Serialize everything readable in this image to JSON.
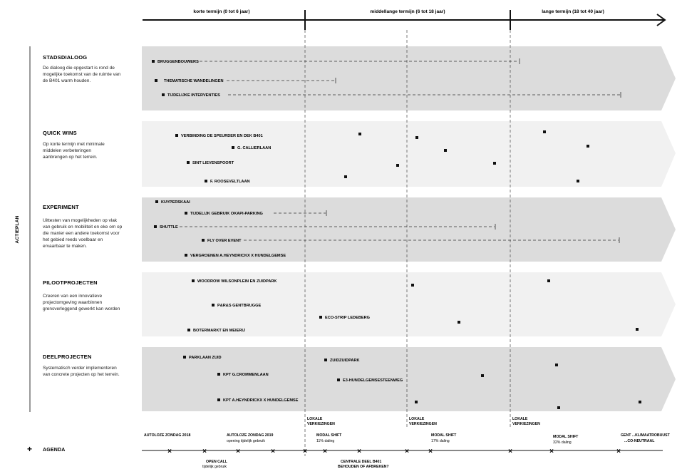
{
  "phases": [
    {
      "label": "korte termijn (0 tot 6 jaar)"
    },
    {
      "label": "middellange termijn (6 tot 18 jaar)"
    },
    {
      "label": "lange termijn (18 tot 40 jaar)"
    }
  ],
  "side_label": "ACTIEPLAN",
  "lanes": [
    {
      "title": "STADSDIALOOG",
      "desc": [
        "De dialoog die opgestart is rond de",
        "mogelijke toekomst van de ruimte van",
        "de B401 warm houden."
      ],
      "items": [
        {
          "label": "BRUGGENBOUWERS"
        },
        {
          "label": "THEMATISCHE WANDELINGEN"
        },
        {
          "label": "TIJDELIJKE INTERVENTIES"
        }
      ]
    },
    {
      "title": "QUICK WINS",
      "desc": [
        "Op korte termijn met minimale",
        "middelen verbeteringen",
        "aanbrengen op het terrein."
      ],
      "items": [
        {
          "label": "VERBINDING DE SPEURDER EN DEK B401"
        },
        {
          "label": "G. CALLIERLAAN"
        },
        {
          "label": "SINT LIEVENSPOORT"
        },
        {
          "label": "F. ROOSEVELTLAAN"
        }
      ]
    },
    {
      "title": "EXPERIMENT",
      "desc": [
        "Uittesten van mogelijkheden op vlak",
        "van gebruik en mobiliteit en eke om op",
        "die manier een andere toekomst voor",
        "het gebied reeds voelbaar en",
        "ervaarbaar te maken."
      ],
      "items": [
        {
          "label": "KUYPERSKAAI"
        },
        {
          "label": "TIJDELIJK GEBRUIK OKAPI-PARKING"
        },
        {
          "label": "SHUTTLE"
        },
        {
          "label": "FLY OVER EVENT"
        },
        {
          "label": "VERGROENEN A.HEYNDRICKX X HUNDELGEMSE"
        }
      ]
    },
    {
      "title": "PILOOTPROJECTEN",
      "desc": [
        "Creeren van een innovatieve",
        "projectomgeving waarbinnen",
        "grensverleggend gewerkt kan worden"
      ],
      "items": [
        {
          "label": "WOODROW WILSONPLEIN EN ZUIDPARK"
        },
        {
          "label": "P&R&S GENTBRUGGE"
        },
        {
          "label": "ECO-STRIP LEDEBERG"
        },
        {
          "label": "BOTERMARKT EN MEIERIJ"
        }
      ]
    },
    {
      "title": "DEELPROJECTEN",
      "desc": [
        "Systematisch verder implementeren",
        "van concrete projecten op het terrein."
      ],
      "items": [
        {
          "label": "PARKLAAN ZUID"
        },
        {
          "label": "ZUIDZUIDPARK"
        },
        {
          "label": "KPT G.CROMMENLAAN"
        },
        {
          "label": "E3-HUNDELGEMSESTEENWEG"
        },
        {
          "label": "KPT A.HEYNDRICKX X HUNDELGEMSE"
        }
      ]
    }
  ],
  "agenda": {
    "plus": "+",
    "title": "AGENDA",
    "events": [
      {
        "label": "AUTOLOZE ZONDAG 2018",
        "sub": ""
      },
      {
        "label": "AUTOLOZE ZONDAG 2019",
        "sub": "opening tijdelijk gebruik"
      },
      {
        "label": "LOKALE",
        "sub": "VERKIEZINGEN"
      },
      {
        "label": "MODAL SHIFT",
        "sub": "11% daling"
      },
      {
        "label": "LOKALE",
        "sub": "VERKIEZINGEN"
      },
      {
        "label": "MODAL SHIFT",
        "sub": "17% daling"
      },
      {
        "label": "LOKALE",
        "sub": "VERKIEZINGEN"
      },
      {
        "label": "MODAL SHIFT",
        "sub": "32% daling"
      },
      {
        "label": "GENT ...KLIMAATROBUUST",
        "sub": "...CO-NEUTRAAL"
      },
      {
        "label": "OPEN CALL",
        "sub": "tijdelijk gebruik"
      },
      {
        "label": "CENTRALE DEEL B401",
        "sub": "BEHOUDEN OF AFBREKEN?"
      }
    ],
    "cross": "×"
  }
}
